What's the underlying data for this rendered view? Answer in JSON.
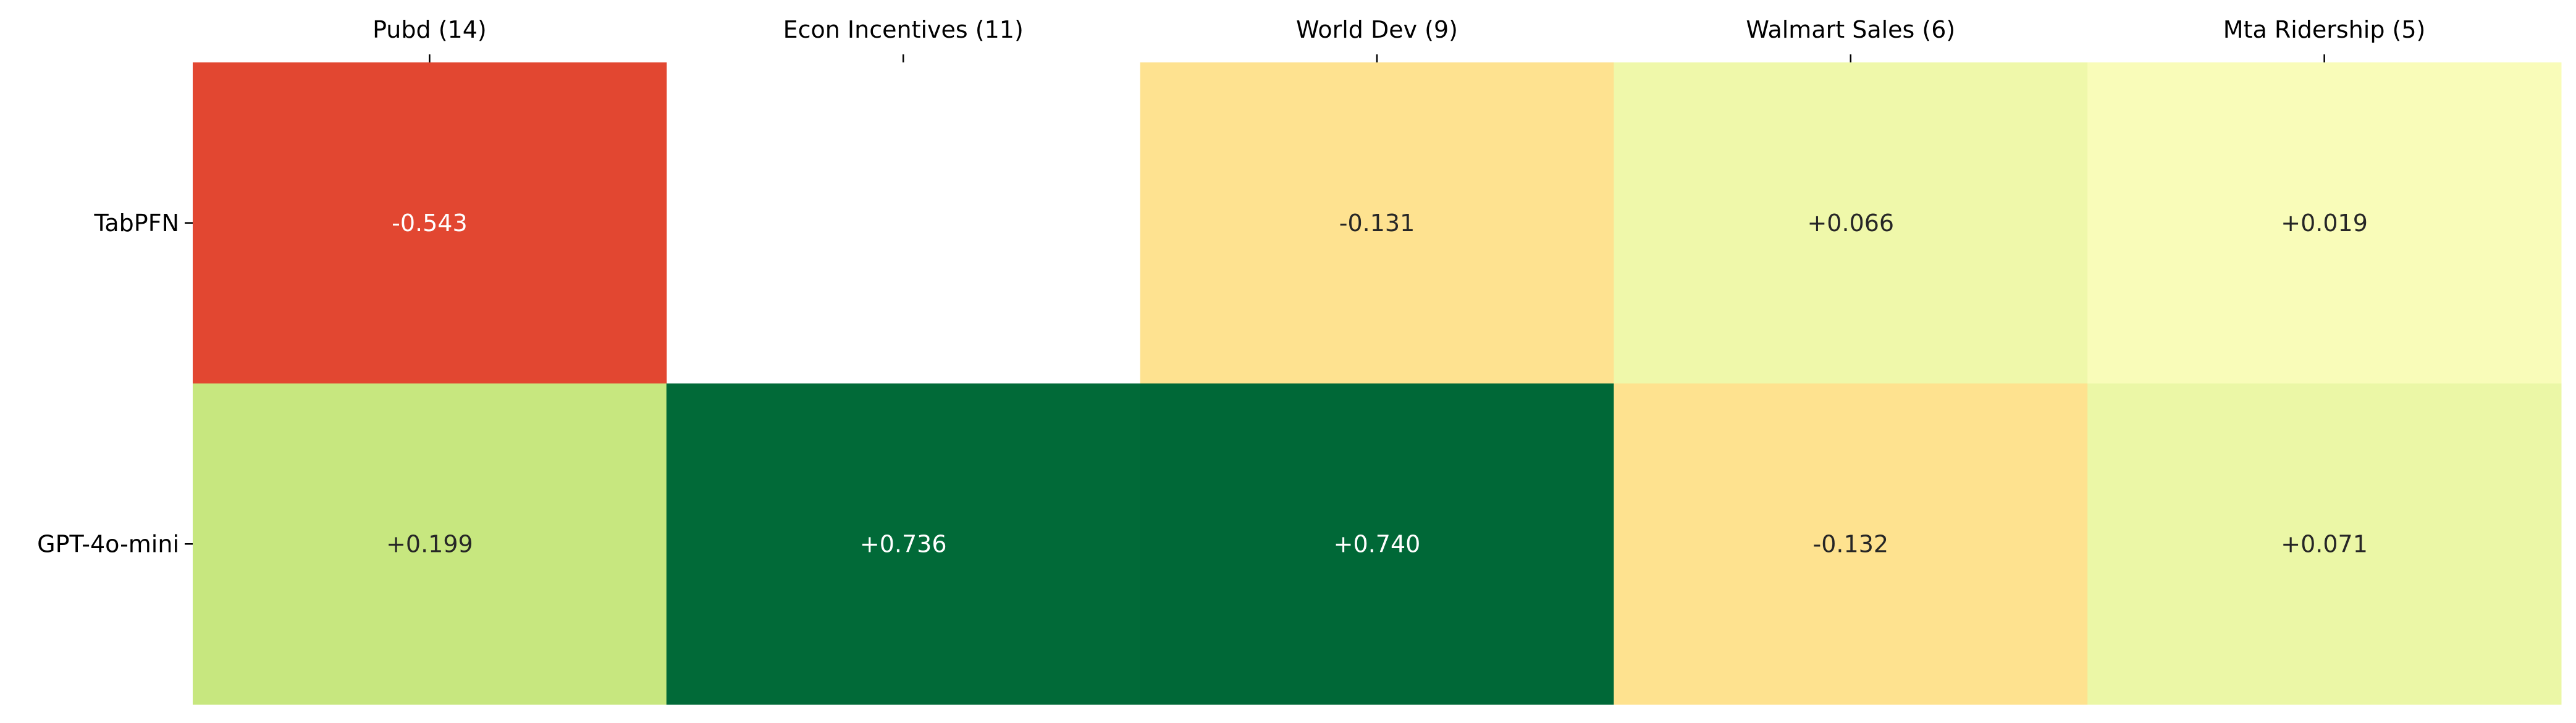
{
  "chart_data": {
    "type": "heatmap",
    "title": "",
    "xlabel": "",
    "ylabel": "",
    "colormap": "RdYlGn",
    "color_range": [
      -0.75,
      0.75
    ],
    "columns": [
      "Pubd (14)",
      "Econ Incentives (11)",
      "World Dev (9)",
      "Walmart Sales (6)",
      "Mta Ridership (5)"
    ],
    "rows": [
      "TabPFN",
      "GPT-4o-mini"
    ],
    "values": [
      [
        -0.543,
        null,
        -0.131,
        0.066,
        0.019
      ],
      [
        0.199,
        0.736,
        0.74,
        -0.132,
        0.071
      ]
    ],
    "labels": [
      [
        "-0.543",
        "",
        "-0.131",
        "+0.066",
        "+0.019"
      ],
      [
        "+0.199",
        "+0.736",
        "+0.740",
        "-0.132",
        "+0.071"
      ]
    ],
    "cell_colors": [
      [
        "#e24731",
        null,
        "#fee290",
        "#eff8aa",
        "#f9fcb9"
      ],
      [
        "#c7e77f",
        "#016a38",
        "#006837",
        "#fee28f",
        "#ebf7a6"
      ]
    ],
    "x_tick_position": "top",
    "colorbar": false
  }
}
